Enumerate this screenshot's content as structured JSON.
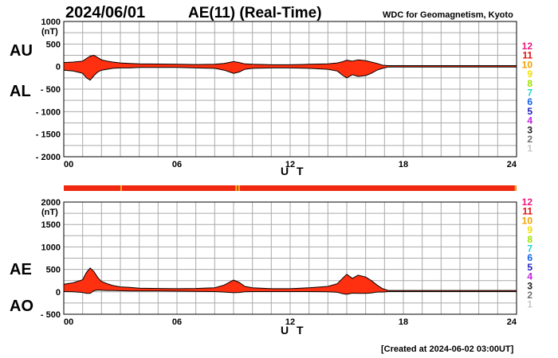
{
  "header": {
    "date": "2024/06/01",
    "title": "AE(11) (Real-Time)",
    "source": "WDC for Geomagnetism, Kyoto"
  },
  "footer": {
    "created": "[Created at 2024-06-02 03:00UT]"
  },
  "station_legend": {
    "labels": [
      "12",
      "11",
      "10",
      "9",
      "8",
      "7",
      "6",
      "5",
      "4",
      "3",
      "2",
      "1"
    ],
    "colors": [
      "#e8197d",
      "#e01010",
      "#f0a000",
      "#f0e000",
      "#a0e000",
      "#20d0d0",
      "#1060f0",
      "#2020c0",
      "#c020e0",
      "#202020",
      "#707070",
      "#c8c8c8"
    ]
  },
  "colors": {
    "fill": "#ff3010",
    "band": "#f02810",
    "band_tick": "#f0b020",
    "curve": "#000000"
  },
  "chart_data": [
    {
      "type": "area",
      "name": "AU-AL",
      "labels": {
        "upper": "AU",
        "lower": "AL"
      },
      "xlabel": "U T",
      "unit": "(nT)",
      "xlim": [
        0,
        24
      ],
      "ylim": [
        -2000,
        1000
      ],
      "x_ticks": [
        "00",
        "06",
        "12",
        "18",
        "24"
      ],
      "y_ticks": [
        "1000",
        "500",
        "0",
        "- 500",
        "- 1000",
        "- 1500",
        "- 2000"
      ],
      "grid": true,
      "x": [
        0,
        0.5,
        1,
        1.2,
        1.4,
        1.6,
        1.8,
        2,
        2.3,
        2.6,
        3,
        3.5,
        4,
        5,
        6,
        7,
        8,
        8.5,
        9,
        9.3,
        9.6,
        10,
        11,
        12,
        13,
        14,
        14.5,
        14.8,
        15,
        15.3,
        15.6,
        16,
        16.3,
        16.6,
        16.9,
        17.2,
        18,
        19,
        20,
        21,
        22,
        23,
        24
      ],
      "series": [
        {
          "name": "AU",
          "values": [
            90,
            100,
            120,
            180,
            230,
            250,
            200,
            150,
            120,
            100,
            80,
            70,
            60,
            55,
            50,
            45,
            50,
            70,
            110,
            90,
            60,
            50,
            40,
            40,
            50,
            60,
            80,
            110,
            140,
            120,
            150,
            130,
            100,
            70,
            30,
            20,
            20,
            20,
            20,
            20,
            20,
            20,
            20
          ]
        },
        {
          "name": "AL",
          "values": [
            -80,
            -100,
            -150,
            -250,
            -300,
            -200,
            -120,
            -80,
            -60,
            -40,
            -30,
            -30,
            -20,
            -20,
            -20,
            -30,
            -40,
            -80,
            -150,
            -120,
            -60,
            -40,
            -30,
            -30,
            -40,
            -60,
            -100,
            -200,
            -250,
            -180,
            -220,
            -200,
            -150,
            -80,
            -40,
            -10,
            -10,
            -10,
            -10,
            -10,
            -10,
            -10,
            -10
          ]
        }
      ]
    },
    {
      "type": "area",
      "name": "AE-AO",
      "labels": {
        "upper": "AE",
        "lower": "AO"
      },
      "xlabel": "U T",
      "unit": "(nT)",
      "xlim": [
        0,
        24
      ],
      "ylim": [
        -500,
        2000
      ],
      "x_ticks": [
        "00",
        "06",
        "12",
        "18",
        "24"
      ],
      "y_ticks": [
        "2000",
        "1500",
        "1000",
        "500",
        "0",
        "- 500"
      ],
      "grid": true,
      "x": [
        0,
        0.5,
        1,
        1.2,
        1.4,
        1.6,
        1.8,
        2,
        2.3,
        2.6,
        3,
        3.5,
        4,
        5,
        6,
        7,
        8,
        8.5,
        9,
        9.3,
        9.6,
        10,
        11,
        12,
        13,
        14,
        14.5,
        14.8,
        15,
        15.3,
        15.6,
        16,
        16.3,
        16.6,
        16.9,
        17.2,
        18,
        19,
        20,
        21,
        22,
        23,
        24
      ],
      "series": [
        {
          "name": "AE",
          "values": [
            170,
            200,
            270,
            430,
            530,
            450,
            320,
            230,
            180,
            140,
            110,
            100,
            80,
            75,
            70,
            75,
            90,
            150,
            260,
            210,
            120,
            90,
            70,
            70,
            90,
            120,
            180,
            310,
            390,
            300,
            370,
            330,
            250,
            150,
            70,
            30,
            30,
            30,
            30,
            30,
            30,
            30,
            30
          ]
        },
        {
          "name": "AO",
          "values": [
            5,
            0,
            -15,
            -35,
            -35,
            25,
            40,
            35,
            30,
            30,
            25,
            20,
            20,
            18,
            15,
            8,
            5,
            -5,
            -20,
            -15,
            0,
            5,
            5,
            5,
            5,
            0,
            -10,
            -45,
            -55,
            -30,
            -35,
            -35,
            -25,
            -5,
            -5,
            5,
            5,
            5,
            5,
            5,
            5,
            5,
            5
          ]
        }
      ]
    }
  ]
}
